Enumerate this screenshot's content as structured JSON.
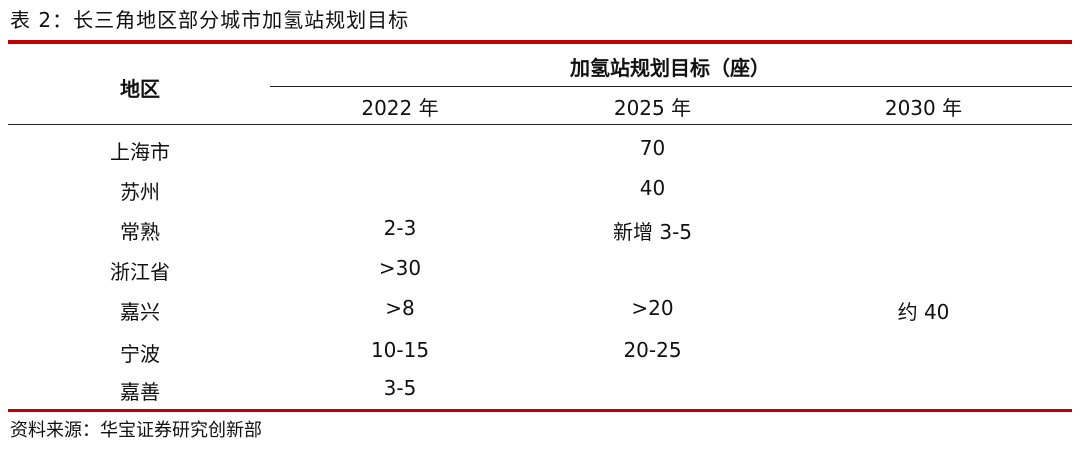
{
  "title": "表 2：长三角地区部分城市加氢站规划目标",
  "table": {
    "region_header": "地区",
    "group_header": "加氢站规划目标（座）",
    "year_headers": [
      "2022 年",
      "2025 年",
      "2030 年"
    ],
    "rows": [
      {
        "region": "上海市",
        "y2022": "",
        "y2025": "70",
        "y2030": ""
      },
      {
        "region": "苏州",
        "y2022": "",
        "y2025": "40",
        "y2030": ""
      },
      {
        "region": "常熟",
        "y2022": "2-3",
        "y2025": "新增 3-5",
        "y2030": ""
      },
      {
        "region": "浙江省",
        "y2022": ">30",
        "y2025": "",
        "y2030": ""
      },
      {
        "region": "嘉兴",
        "y2022": ">8",
        "y2025": ">20",
        "y2030": "约 40"
      },
      {
        "region": "宁波",
        "y2022": "10-15",
        "y2025": "20-25",
        "y2030": ""
      },
      {
        "region": "嘉善",
        "y2022": "3-5",
        "y2025": "",
        "y2030": ""
      }
    ]
  },
  "source": "资料来源：华宝证券研究创新部",
  "colors": {
    "accent_rule": "#c00000"
  }
}
